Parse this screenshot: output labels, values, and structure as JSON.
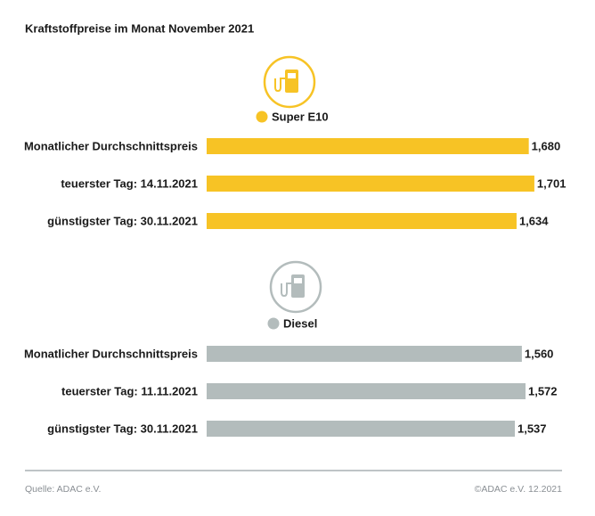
{
  "title": "Kraftstoffpreise im Monat November 2021",
  "source": "Quelle: ADAC e.V.",
  "copyright": "©ADAC e.V. 12.2021",
  "chart_data": [
    {
      "type": "bar",
      "orientation": "horizontal",
      "categories": [
        "Monatlicher Durchschnittspreis",
        "teuerster Tag: 14.11.2021",
        "günstigster Tag: 30.11.2021"
      ],
      "series": [
        {
          "name": "Super E10",
          "color": "#f7c325",
          "values": [
            1.68,
            1.701,
            1.634
          ],
          "value_labels": [
            "1,680",
            "1,701",
            "1,634"
          ]
        }
      ],
      "xlim": [
        0.466,
        1.708
      ]
    },
    {
      "type": "bar",
      "orientation": "horizontal",
      "categories": [
        "Monatlicher Durchschnittspreis",
        "teuerster Tag: 11.11.2021",
        "günstigster Tag: 30.11.2021"
      ],
      "series": [
        {
          "name": "Diesel",
          "color": "#b3bcbc",
          "values": [
            1.56,
            1.572,
            1.537
          ],
          "value_labels": [
            "1,560",
            "1,572",
            "1,537"
          ]
        }
      ],
      "xlim": [
        0.528,
        1.607
      ]
    }
  ]
}
